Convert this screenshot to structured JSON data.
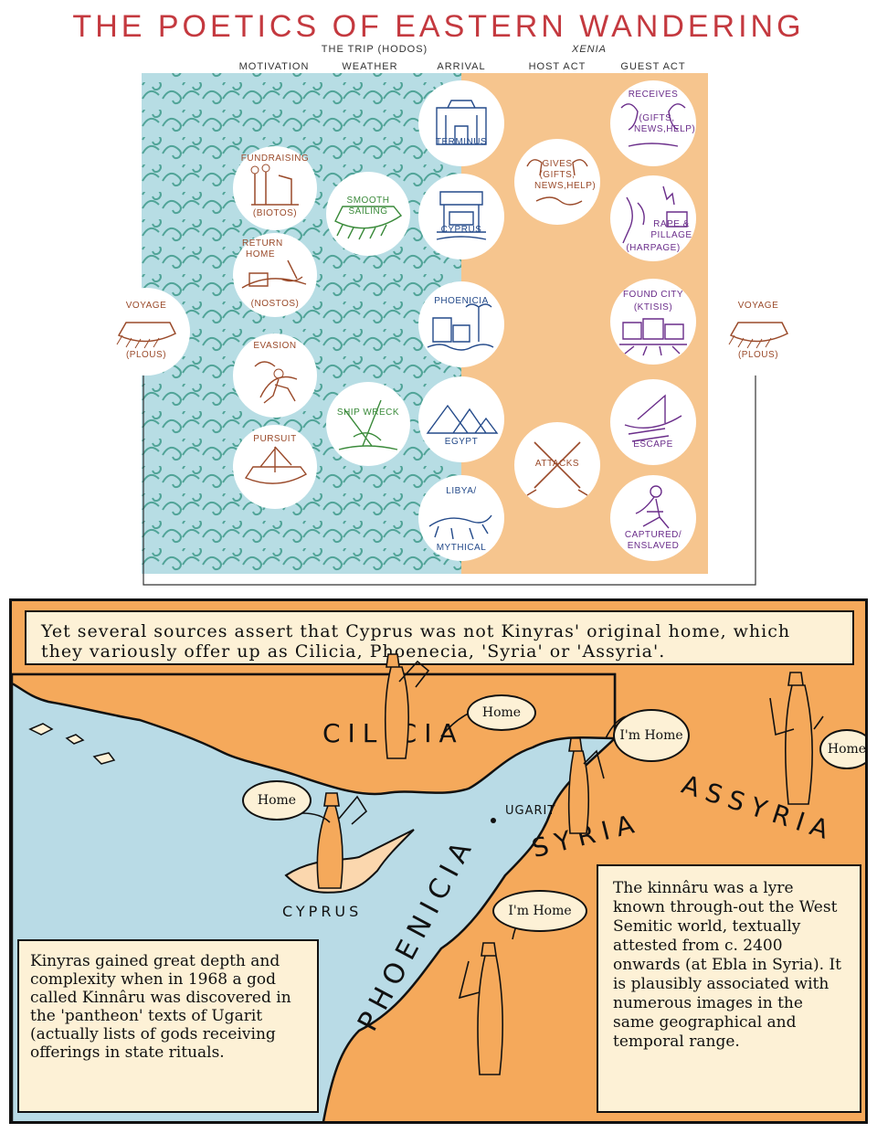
{
  "diagram": {
    "title": "THE POETICS OF EASTERN WANDERING",
    "group_headers": {
      "trip": "THE TRIP (HODOS)",
      "xenia": "XENIA"
    },
    "columns": [
      "MOTIVATION",
      "WEATHER",
      "ARRIVAL",
      "HOST ACT",
      "GUEST ACT"
    ],
    "voyage_left": {
      "line1": "VOYAGE",
      "line2": "(PLOUS)"
    },
    "voyage_right": {
      "line1": "VOYAGE",
      "line2": "(PLOUS)"
    },
    "motivation": [
      {
        "label": "FUNDRAISING",
        "sub": "(BIOTOS)",
        "icon": "fundraising-figures-icon"
      },
      {
        "label": "RETURN HOME",
        "sub": "(NOSTOS)",
        "icon": "return-home-icon"
      },
      {
        "label": "EVASION",
        "sub": "",
        "icon": "evasion-figures-icon"
      },
      {
        "label": "PURSUIT",
        "sub": "",
        "icon": "pursuit-ship-icon"
      }
    ],
    "weather": [
      {
        "label": "SMOOTH SAILING",
        "icon": "smooth-sailing-ship-icon"
      },
      {
        "label": "SHIP WRECK",
        "icon": "shipwreck-icon"
      }
    ],
    "arrival": [
      {
        "label": "TERMINUS",
        "icon": "temple-icon"
      },
      {
        "label": "CYPRUS",
        "icon": "cyprus-building-icon"
      },
      {
        "label": "PHOENICIA",
        "icon": "phoenicia-city-icon"
      },
      {
        "label": "EGYPT",
        "icon": "pyramids-icon"
      },
      {
        "label": "LIBYA/",
        "sub": "MYTHICAL",
        "icon": "leopard-icon"
      }
    ],
    "host": [
      {
        "label": "GIVES",
        "sub": "(GIFTS, NEWS,HELP)",
        "icon": "handshake-icon"
      },
      {
        "label": "ATTACKS",
        "icon": "crossed-swords-icon"
      }
    ],
    "guest": [
      {
        "label": "RECEIVES",
        "sub": "(GIFTS, NEWS,HELP)",
        "icon": "receiving-faces-icon"
      },
      {
        "label": "RAPE & PILLAGE",
        "sub": "(HARPAGE)",
        "icon": "pillage-icon"
      },
      {
        "label": "FOUND CITY",
        "sub": "(KTISIS)",
        "icon": "found-city-icon"
      },
      {
        "label": "ESCAPE",
        "icon": "escape-ship-icon"
      },
      {
        "label": "CAPTURED/",
        "sub": "ENSLAVED",
        "icon": "captive-figure-icon"
      }
    ],
    "colors": {
      "sea": "#b7dde4",
      "land": "#f6c58e",
      "wave": "#3f9a8a",
      "title": "#c4393f"
    }
  },
  "comic": {
    "top_caption": "Yet several sources assert that Cyprus was not Kinyras' original home, which they variously offer up as Cilicia, Phoenecia, 'Syria' or 'Assyria'.",
    "regions": [
      "CILICIA",
      "SYRIA",
      "ASSYRIA",
      "CYPRUS",
      "PHOENICIA",
      "UGARIT"
    ],
    "speech": {
      "cilicia": "Home",
      "syria": "I'm Home",
      "assyria": "Home",
      "cyprus": "Home",
      "phoenicia": "I'm Home"
    },
    "left_caption": "Kinyras gained great depth and complexity when in 1968 a god called Kinnâru was discovered in the 'pantheon' texts of Ugarit (actually lists of gods receiving offerings in state rituals.",
    "right_caption": "The kinnâru was a lyre known through-out the West Semitic world, textually attested from c. 2400 onwards (at Ebla in Syria). It is plausibly associated with numerous images in the same geographical and temporal range.",
    "colors": {
      "sea": "#b9dbe6",
      "land": "#f5a95b",
      "caption_bg": "#fdf1d6"
    }
  }
}
